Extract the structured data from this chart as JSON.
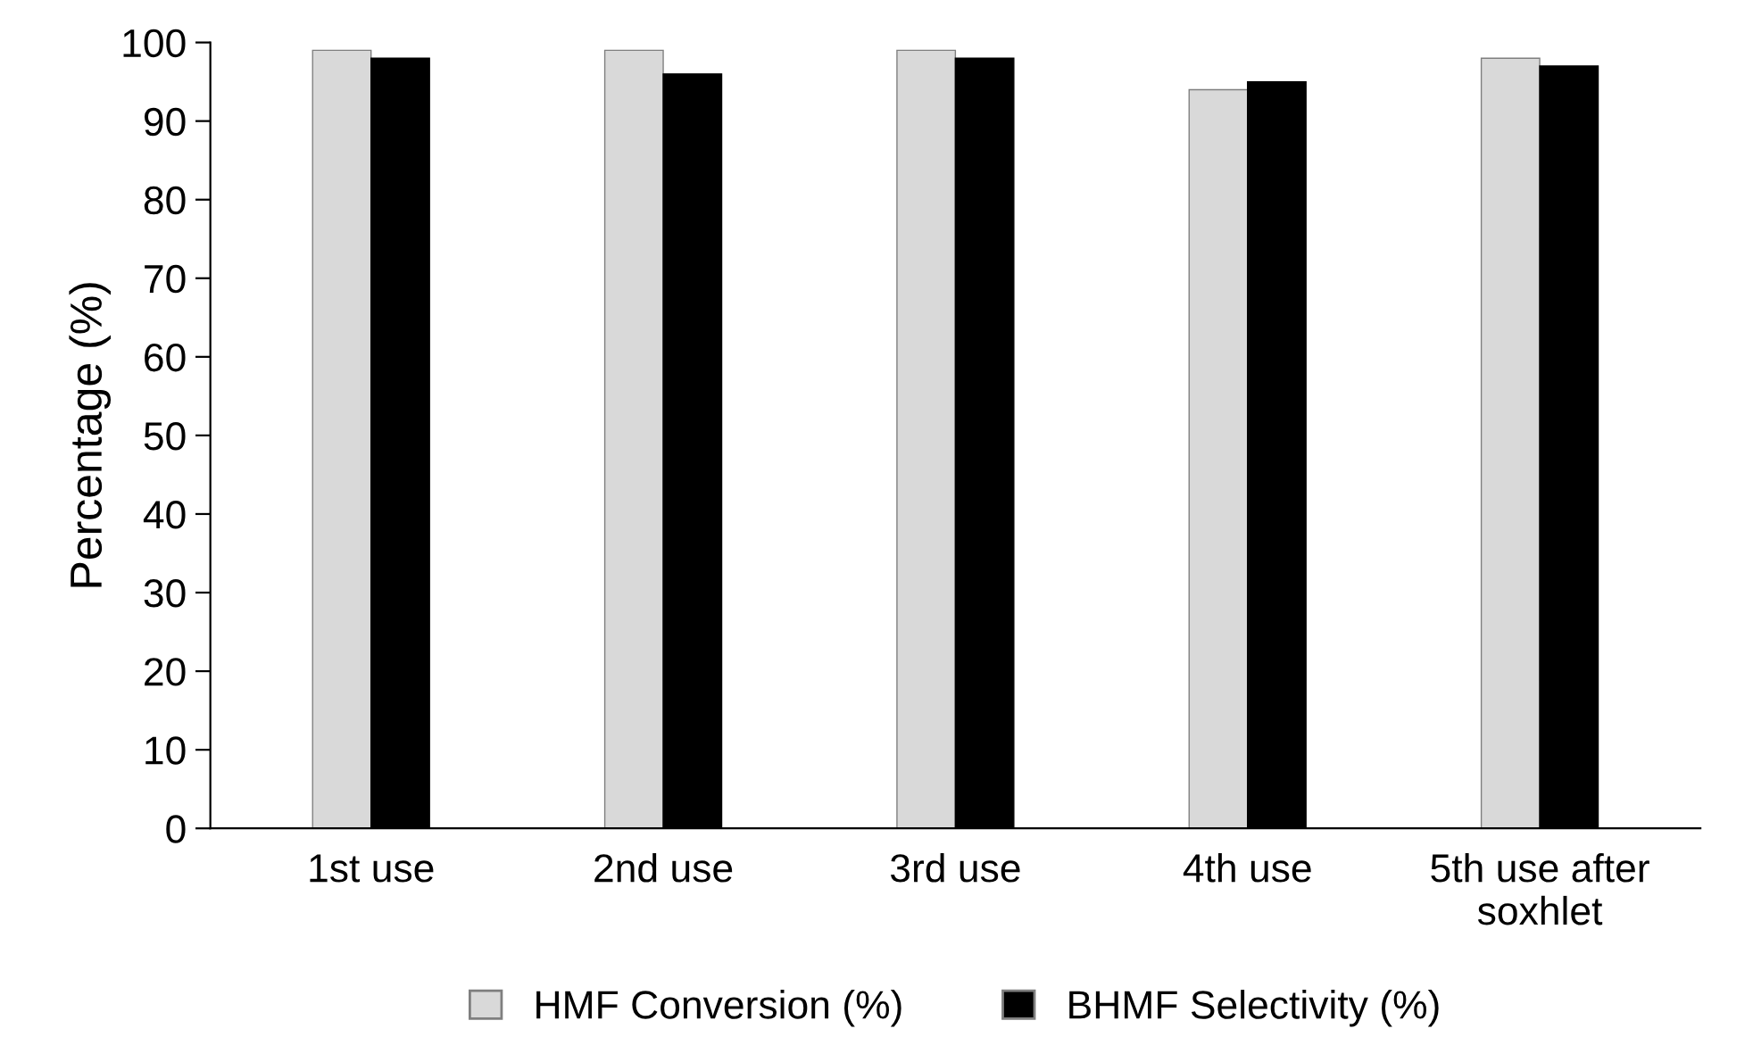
{
  "chart_data": {
    "type": "bar",
    "ylabel": "Percentage (%)",
    "categories": [
      "1st use",
      "2nd use",
      "3rd use",
      "4th use",
      "5th use after\nsoxhlet"
    ],
    "series": [
      {
        "name": "HMF Conversion (%)",
        "color": "#d9d9d9",
        "values": [
          99,
          99,
          99,
          94,
          98
        ]
      },
      {
        "name": "BHMF Selectivity (%)",
        "color": "#000000",
        "values": [
          98,
          96,
          98,
          95,
          97
        ]
      }
    ],
    "ylim": [
      0,
      100
    ],
    "yticks": [
      0,
      10,
      20,
      30,
      40,
      50,
      60,
      70,
      80,
      90,
      100
    ],
    "grid": false,
    "legend": "bottom"
  }
}
